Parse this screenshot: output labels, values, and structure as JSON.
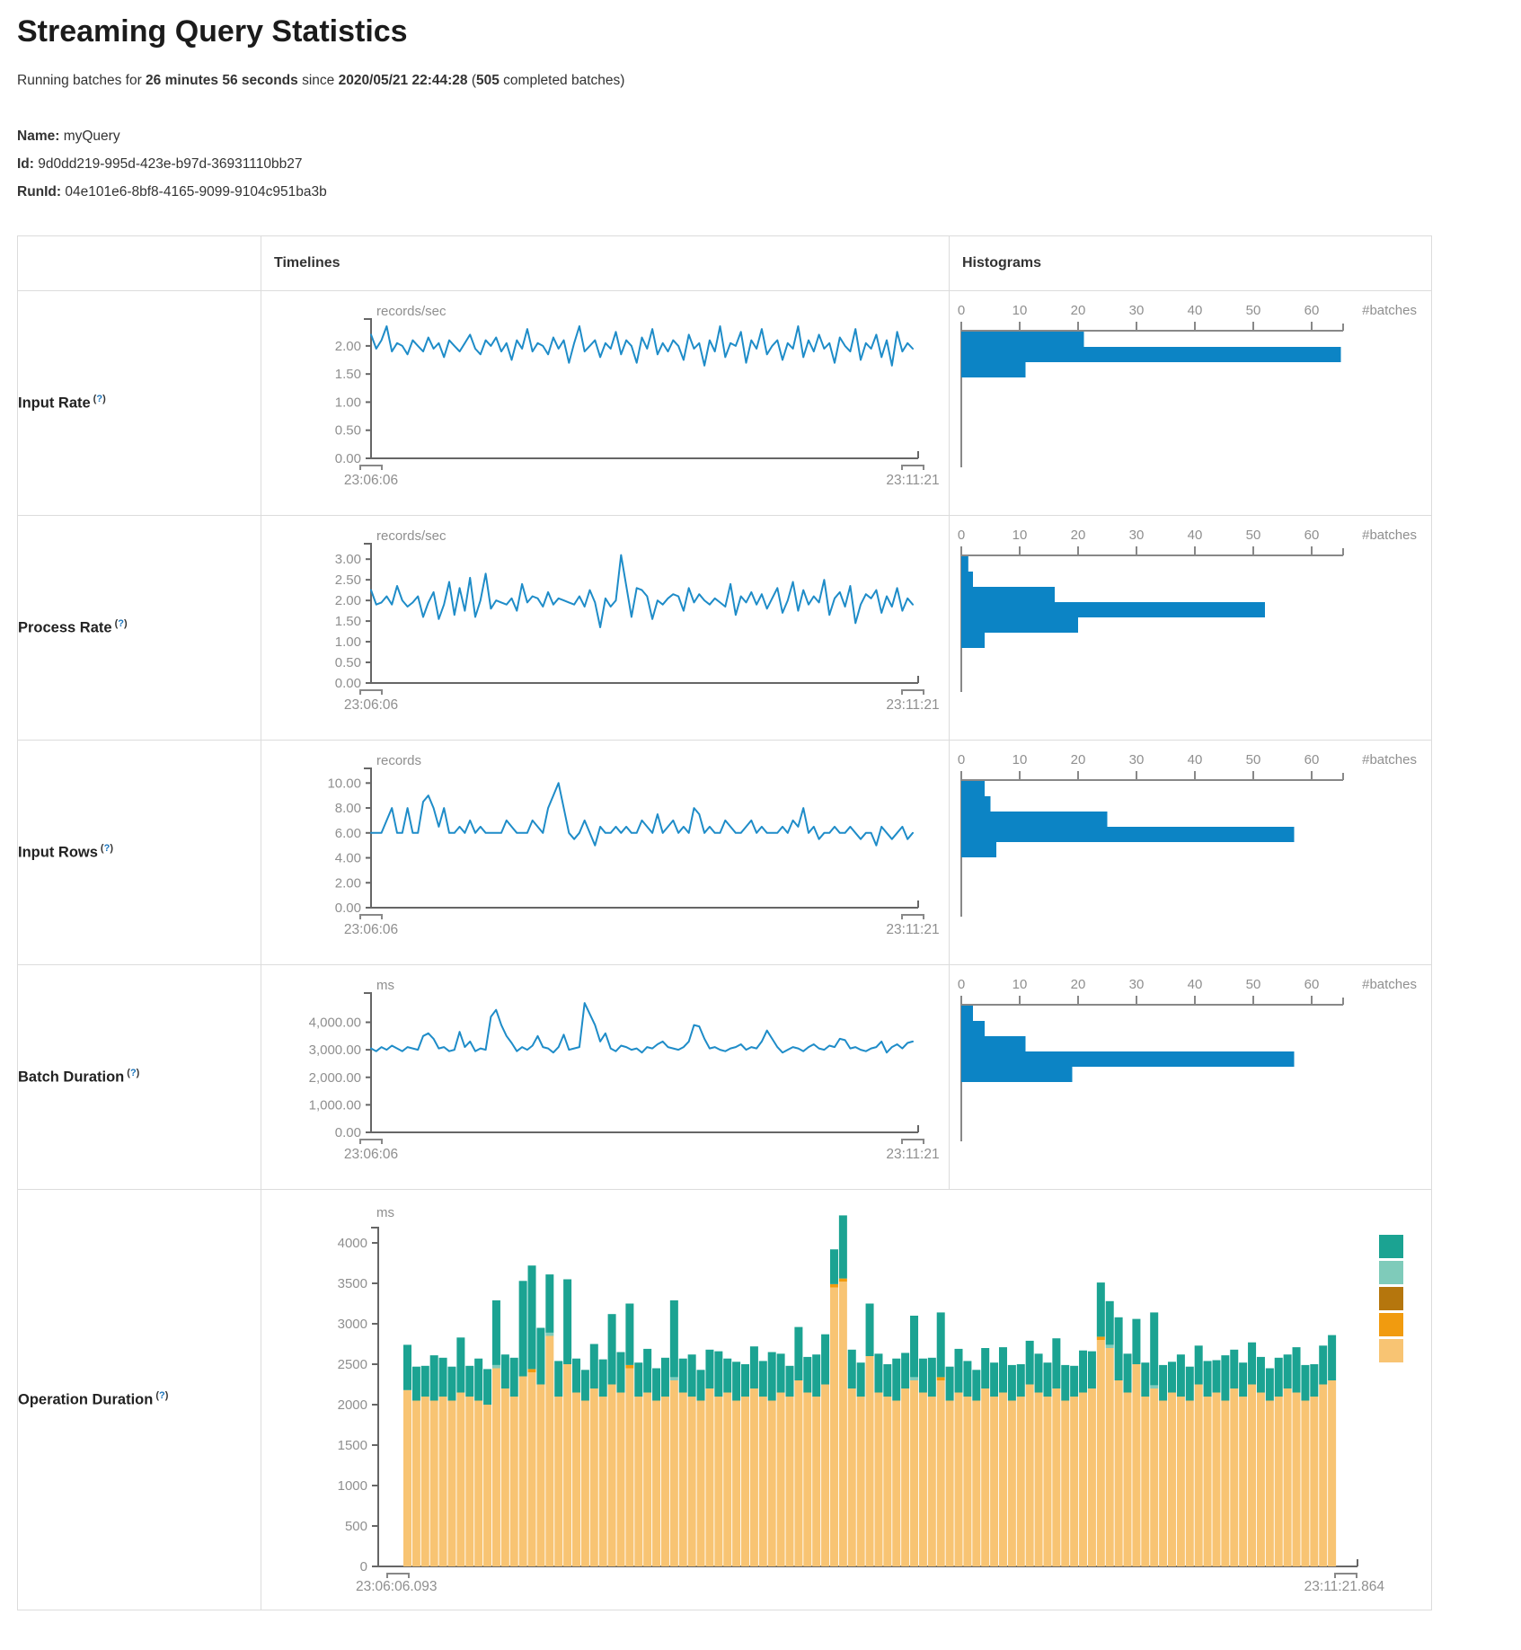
{
  "page": {
    "title": "Streaming Query Statistics",
    "status": {
      "pre": "Running batches for ",
      "duration": "26 minutes 56 seconds",
      "mid": " since ",
      "since": "2020/05/21 22:44:28",
      "paren": " (",
      "batches": "505",
      "post": " completed batches)"
    },
    "name_label": "Name:",
    "name": "myQuery",
    "id_label": "Id:",
    "id": "9d0dd219-995d-423e-b97d-36931110bb27",
    "runid_label": "RunId:",
    "runid": "04e101e6-8bf8-4165-9099-9104c951ba3b"
  },
  "table": {
    "col_timelines": "Timelines",
    "col_histograms": "Histograms",
    "help_open": "(",
    "help_q": "?",
    "help_close": ")",
    "rows": [
      {
        "label": "Input Rate"
      },
      {
        "label": "Process Rate"
      },
      {
        "label": "Input Rows"
      },
      {
        "label": "Batch Duration"
      },
      {
        "label": "Operation Duration"
      }
    ]
  },
  "colors": {
    "line_blue": "#1e8cc8",
    "hist_blue": "#0c84c5",
    "axis_dark": "#666666",
    "axis_mid": "#888888",
    "tick_text": "#8f8f8f",
    "teal": "#1ba392",
    "light_teal": "#7fcbba",
    "dark_orange": "#b5760d",
    "orange": "#f19b0f",
    "tan": "#f8c473"
  },
  "chart_data": [
    {
      "type": "line",
      "metric": "Input Rate",
      "unit": "records/sec",
      "x_start": "23:06:06",
      "x_end": "23:11:21",
      "ylim": [
        0,
        2.35
      ],
      "y_ticks": [
        {
          "v": 2,
          "t": "2.00"
        },
        {
          "v": 1.5,
          "t": "1.50"
        },
        {
          "v": 1,
          "t": "1.00"
        },
        {
          "v": 0.5,
          "t": "0.50"
        },
        {
          "v": 0,
          "t": "0.00"
        }
      ],
      "values": [
        2.2,
        1.95,
        2.1,
        2.35,
        1.9,
        2.05,
        2.0,
        1.85,
        2.1,
        2.0,
        1.9,
        2.15,
        1.95,
        2.05,
        1.8,
        2.1,
        2.0,
        1.9,
        2.05,
        2.2,
        1.95,
        1.85,
        2.1,
        2.0,
        2.15,
        1.9,
        2.05,
        1.75,
        2.1,
        1.95,
        2.3,
        1.9,
        2.05,
        2.0,
        1.85,
        2.15,
        1.95,
        2.1,
        1.7,
        2.05,
        2.35,
        1.9,
        2.0,
        2.1,
        1.8,
        2.05,
        1.95,
        2.25,
        1.85,
        2.1,
        2.0,
        1.7,
        2.15,
        1.95,
        2.3,
        1.85,
        2.05,
        1.9,
        2.1,
        2.0,
        1.75,
        2.2,
        1.95,
        2.05,
        1.65,
        2.1,
        1.9,
        2.35,
        1.8,
        2.05,
        2.0,
        2.25,
        1.7,
        2.1,
        1.95,
        2.3,
        1.85,
        2.0,
        2.1,
        1.75,
        2.05,
        1.95,
        2.35,
        1.8,
        2.1,
        1.9,
        2.2,
        1.95,
        2.05,
        1.7,
        2.15,
        2.0,
        1.9,
        2.3,
        1.75,
        2.05,
        1.95,
        2.2,
        1.8,
        2.1,
        1.65,
        2.25,
        1.9,
        2.05,
        1.95
      ],
      "histogram": {
        "ticks": [
          0,
          10,
          20,
          30,
          40,
          50,
          60
        ],
        "axis_label": "#batches",
        "bars": [
          21,
          65,
          11
        ]
      }
    },
    {
      "type": "line",
      "metric": "Process Rate",
      "unit": "records/sec",
      "x_start": "23:06:06",
      "x_end": "23:11:21",
      "ylim": [
        0,
        3.2
      ],
      "y_ticks": [
        {
          "v": 3,
          "t": "3.00"
        },
        {
          "v": 2.5,
          "t": "2.50"
        },
        {
          "v": 2,
          "t": "2.00"
        },
        {
          "v": 1.5,
          "t": "1.50"
        },
        {
          "v": 1,
          "t": "1.00"
        },
        {
          "v": 0.5,
          "t": "0.50"
        },
        {
          "v": 0,
          "t": "0.00"
        }
      ],
      "values": [
        2.25,
        1.9,
        1.95,
        2.1,
        1.9,
        2.35,
        2.0,
        1.85,
        1.95,
        2.1,
        1.6,
        1.95,
        2.2,
        1.55,
        1.9,
        2.45,
        1.65,
        2.3,
        1.75,
        2.55,
        1.6,
        2.0,
        2.65,
        1.8,
        2.0,
        1.95,
        1.9,
        2.05,
        1.75,
        2.4,
        1.95,
        2.1,
        2.05,
        1.85,
        2.2,
        1.9,
        2.05,
        2.0,
        1.95,
        1.9,
        2.1,
        1.85,
        2.25,
        1.95,
        1.35,
        2.05,
        1.85,
        2.0,
        3.1,
        2.35,
        1.6,
        2.3,
        2.25,
        2.1,
        1.55,
        2.0,
        1.9,
        2.05,
        2.15,
        2.1,
        1.75,
        2.3,
        1.95,
        2.15,
        2.0,
        1.9,
        2.05,
        1.95,
        1.85,
        2.4,
        1.65,
        2.1,
        1.95,
        2.2,
        1.9,
        2.15,
        1.8,
        2.05,
        2.3,
        1.7,
        2.0,
        2.45,
        1.75,
        2.25,
        1.9,
        2.1,
        1.95,
        2.5,
        1.65,
        2.05,
        2.2,
        1.85,
        2.35,
        1.45,
        1.9,
        2.15,
        2.05,
        2.25,
        1.7,
        2.1,
        1.85,
        2.3,
        1.75,
        2.05,
        1.9
      ],
      "histogram": {
        "ticks": [
          0,
          10,
          20,
          30,
          40,
          50,
          60
        ],
        "axis_label": "#batches",
        "bars": [
          1.2,
          2,
          16,
          52,
          20,
          4
        ]
      }
    },
    {
      "type": "line",
      "metric": "Input Rows",
      "unit": "records",
      "x_start": "23:06:06",
      "x_end": "23:11:21",
      "ylim": [
        0,
        10.6
      ],
      "y_ticks": [
        {
          "v": 10,
          "t": "10.00"
        },
        {
          "v": 8,
          "t": "8.00"
        },
        {
          "v": 6,
          "t": "6.00"
        },
        {
          "v": 4,
          "t": "4.00"
        },
        {
          "v": 2,
          "t": "2.00"
        },
        {
          "v": 0,
          "t": "0.00"
        }
      ],
      "values": [
        6,
        6,
        6,
        7,
        8,
        6,
        6,
        8,
        6,
        6,
        8.5,
        9,
        8,
        6.5,
        8,
        6,
        6,
        6.5,
        6,
        7,
        6,
        6.5,
        6,
        6,
        6,
        6,
        7,
        6.5,
        6,
        6,
        6,
        7,
        6.5,
        6,
        8,
        9,
        10,
        8,
        6,
        5.5,
        6,
        7,
        6,
        5,
        6.5,
        6,
        6,
        6.5,
        6,
        6.5,
        6,
        6,
        7,
        6.5,
        6,
        7.5,
        6,
        6.5,
        7,
        6,
        6.5,
        6,
        8,
        7.5,
        6,
        6.5,
        6,
        6,
        7,
        6.5,
        6,
        6,
        6.5,
        7,
        6,
        6.5,
        6,
        6,
        6,
        6.5,
        6,
        7,
        6.5,
        8,
        6,
        6.5,
        5.5,
        6,
        6,
        6.5,
        6,
        6,
        6.5,
        6,
        5.5,
        6,
        6,
        5,
        6.5,
        6,
        5.5,
        6,
        6.5,
        5.5,
        6
      ],
      "histogram": {
        "ticks": [
          0,
          10,
          20,
          30,
          40,
          50,
          60
        ],
        "axis_label": "#batches",
        "bars": [
          4,
          5,
          25,
          57,
          6
        ]
      }
    },
    {
      "type": "line",
      "metric": "Batch Duration",
      "unit": "ms",
      "x_start": "23:06:06",
      "x_end": "23:11:21",
      "ylim": [
        0,
        4800
      ],
      "y_ticks": [
        {
          "v": 4000,
          "t": "4,000.00"
        },
        {
          "v": 3000,
          "t": "3,000.00"
        },
        {
          "v": 2000,
          "t": "2,000.00"
        },
        {
          "v": 1000,
          "t": "1,000.00"
        },
        {
          "v": 0,
          "t": "0.00"
        }
      ],
      "values": [
        3050,
        2950,
        3100,
        3000,
        3150,
        3050,
        2950,
        3100,
        3050,
        3000,
        3500,
        3600,
        3400,
        3050,
        3100,
        2950,
        3000,
        3650,
        3100,
        3300,
        2950,
        3050,
        3000,
        4200,
        4450,
        3900,
        3500,
        3250,
        2950,
        3100,
        3000,
        3150,
        3500,
        3100,
        3050,
        2900,
        3100,
        3550,
        3000,
        3050,
        3100,
        4700,
        4300,
        3900,
        3300,
        3600,
        3050,
        2950,
        3150,
        3100,
        3000,
        3050,
        2900,
        3100,
        3050,
        3200,
        3300,
        3100,
        3050,
        3000,
        3100,
        3300,
        3900,
        3850,
        3400,
        3050,
        3100,
        3000,
        2950,
        3050,
        3100,
        3200,
        3000,
        3100,
        3050,
        3300,
        3700,
        3400,
        3100,
        2900,
        3000,
        3100,
        3050,
        2950,
        3100,
        3200,
        3050,
        3000,
        3150,
        3100,
        3400,
        3350,
        3050,
        3100,
        3000,
        2950,
        3050,
        3100,
        3300,
        2900,
        3100,
        3200,
        3050,
        3250,
        3300
      ],
      "histogram": {
        "ticks": [
          0,
          10,
          20,
          30,
          40,
          50,
          60
        ],
        "axis_label": "#batches",
        "bars": [
          2,
          4,
          11,
          57,
          19
        ]
      }
    },
    {
      "type": "stacked-bar",
      "metric": "Operation Duration",
      "unit": "ms",
      "x_start": "23:06:06.093",
      "x_end": "23:11:21.864",
      "y_ticks": [
        {
          "v": 4000,
          "t": "4000"
        },
        {
          "v": 3500,
          "t": "3500"
        },
        {
          "v": 3000,
          "t": "3000"
        },
        {
          "v": 2500,
          "t": "2500"
        },
        {
          "v": 2000,
          "t": "2000"
        },
        {
          "v": 1500,
          "t": "1500"
        },
        {
          "v": 1000,
          "t": "1000"
        },
        {
          "v": 500,
          "t": "500"
        },
        {
          "v": 0,
          "t": "0"
        }
      ],
      "legend_colors": [
        "#1ba392",
        "#7fcbba",
        "#b5760d",
        "#f19b0f",
        "#f8c473"
      ],
      "bars": [
        [
          2180,
          560
        ],
        [
          2050,
          420
        ],
        [
          2100,
          380
        ],
        [
          2050,
          560
        ],
        [
          2100,
          480
        ],
        [
          2050,
          420
        ],
        [
          2150,
          680
        ],
        [
          2100,
          380
        ],
        [
          2050,
          520
        ],
        [
          2000,
          440
        ],
        [
          2450,
          800
        ],
        [
          2200,
          420
        ],
        [
          2100,
          480
        ],
        [
          2350,
          1180
        ],
        [
          2400,
          1280
        ],
        [
          2250,
          700
        ],
        [
          2850,
          720
        ],
        [
          2100,
          440
        ],
        [
          2500,
          1050
        ],
        [
          2150,
          420
        ],
        [
          2050,
          380
        ],
        [
          2200,
          550
        ],
        [
          2100,
          460
        ],
        [
          2250,
          870
        ],
        [
          2150,
          500
        ],
        [
          2450,
          760
        ],
        [
          2100,
          420
        ],
        [
          2150,
          540
        ],
        [
          2050,
          400
        ],
        [
          2100,
          480
        ],
        [
          2300,
          950
        ],
        [
          2150,
          420
        ],
        [
          2100,
          520
        ],
        [
          2050,
          380
        ],
        [
          2200,
          480
        ],
        [
          2100,
          560
        ],
        [
          2150,
          420
        ],
        [
          2050,
          480
        ],
        [
          2100,
          400
        ],
        [
          2200,
          520
        ],
        [
          2100,
          440
        ],
        [
          2050,
          600
        ],
        [
          2150,
          480
        ],
        [
          2100,
          380
        ],
        [
          2300,
          660
        ],
        [
          2150,
          440
        ],
        [
          2100,
          520
        ],
        [
          2250,
          620
        ],
        [
          3450,
          430
        ],
        [
          3520,
          780
        ],
        [
          2200,
          480
        ],
        [
          2100,
          420
        ],
        [
          2600,
          650
        ],
        [
          2150,
          480
        ],
        [
          2100,
          400
        ],
        [
          2050,
          520
        ],
        [
          2200,
          440
        ],
        [
          2300,
          760
        ],
        [
          2150,
          420
        ],
        [
          2100,
          480
        ],
        [
          2300,
          800
        ],
        [
          2050,
          420
        ],
        [
          2150,
          540
        ],
        [
          2100,
          440
        ],
        [
          2050,
          380
        ],
        [
          2200,
          500
        ],
        [
          2100,
          420
        ],
        [
          2150,
          560
        ],
        [
          2050,
          440
        ],
        [
          2100,
          400
        ],
        [
          2250,
          540
        ],
        [
          2150,
          480
        ],
        [
          2100,
          420
        ],
        [
          2200,
          620
        ],
        [
          2050,
          440
        ],
        [
          2100,
          380
        ],
        [
          2150,
          520
        ],
        [
          2200,
          460
        ],
        [
          2800,
          670
        ],
        [
          2700,
          540
        ],
        [
          2300,
          780
        ],
        [
          2150,
          480
        ],
        [
          2500,
          560
        ],
        [
          2100,
          420
        ],
        [
          2200,
          900
        ],
        [
          2050,
          440
        ],
        [
          2150,
          380
        ],
        [
          2100,
          520
        ],
        [
          2050,
          420
        ],
        [
          2250,
          480
        ],
        [
          2100,
          440
        ],
        [
          2150,
          400
        ],
        [
          2050,
          560
        ],
        [
          2200,
          480
        ],
        [
          2100,
          420
        ],
        [
          2250,
          520
        ],
        [
          2150,
          440
        ],
        [
          2050,
          400
        ],
        [
          2100,
          480
        ],
        [
          2200,
          420
        ],
        [
          2150,
          560
        ],
        [
          2050,
          440
        ],
        [
          2100,
          400
        ],
        [
          2250,
          480
        ],
        [
          2300,
          560
        ]
      ],
      "slivers": {
        "10": "lt",
        "14": "or",
        "16": "lt",
        "25": "or",
        "30": "lt",
        "48": "or",
        "49": "or",
        "57": "lt",
        "60": "or",
        "78": "or",
        "79": "lt",
        "84": "lt"
      }
    }
  ]
}
